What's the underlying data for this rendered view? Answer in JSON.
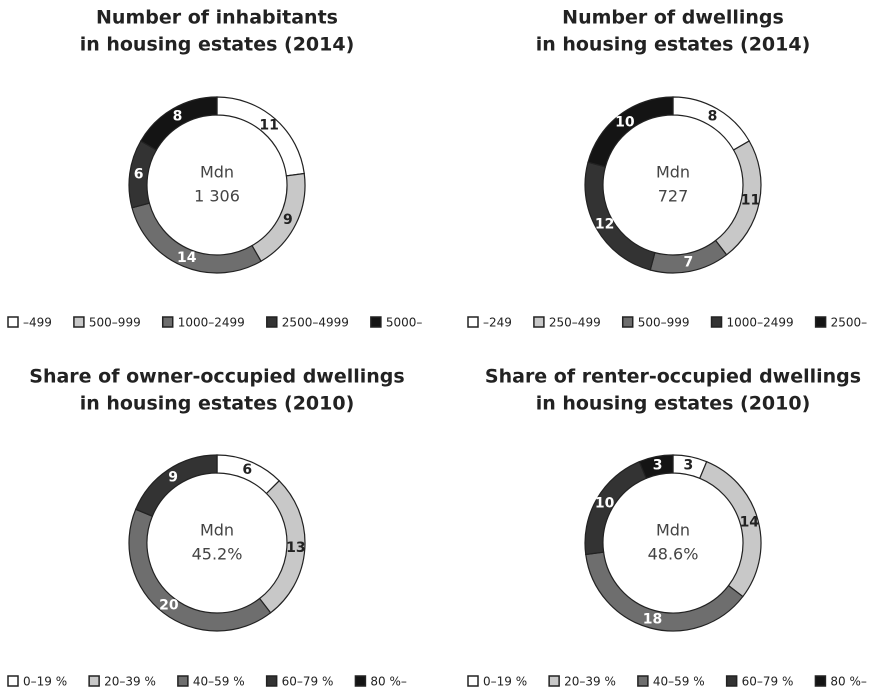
{
  "chart_data": [
    {
      "type": "pie",
      "title": [
        "Number of inhabitants",
        "in housing estates (2014)"
      ],
      "center_label": [
        "Mdn",
        "1 306"
      ],
      "categories": [
        "–499",
        "500–999",
        "1000–2499",
        "2500–4999",
        "5000–"
      ],
      "values": [
        11,
        9,
        14,
        6,
        8
      ],
      "colors": [
        "#ffffff",
        "#c8c8c8",
        "#6e6e6e",
        "#333333",
        "#141414"
      ]
    },
    {
      "type": "pie",
      "title": [
        "Number of dwellings",
        "in housing estates (2014)"
      ],
      "center_label": [
        "Mdn",
        "727"
      ],
      "categories": [
        "–249",
        "250–499",
        "500–999",
        "1000–2499",
        "2500–"
      ],
      "values": [
        8,
        11,
        7,
        12,
        10
      ],
      "colors": [
        "#ffffff",
        "#c8c8c8",
        "#6e6e6e",
        "#333333",
        "#141414"
      ]
    },
    {
      "type": "pie",
      "title": [
        "Share of owner-occupied dwellings",
        "in housing estates (2010)"
      ],
      "center_label": [
        "Mdn",
        "45.2%"
      ],
      "categories": [
        "0–19 %",
        "20–39 %",
        "40–59 %",
        "60–79 %",
        "80 %–"
      ],
      "values": [
        6,
        13,
        20,
        9,
        0
      ],
      "colors": [
        "#ffffff",
        "#c8c8c8",
        "#6e6e6e",
        "#333333",
        "#141414"
      ]
    },
    {
      "type": "pie",
      "title": [
        "Share of renter-occupied dwellings",
        "in housing estates (2010)"
      ],
      "center_label": [
        "Mdn",
        "48.6%"
      ],
      "categories": [
        "0–19 %",
        "20–39 %",
        "40–59 %",
        "60–79 %",
        "80 %–"
      ],
      "values": [
        3,
        14,
        18,
        10,
        3
      ],
      "colors": [
        "#ffffff",
        "#c8c8c8",
        "#6e6e6e",
        "#333333",
        "#141414"
      ]
    }
  ]
}
